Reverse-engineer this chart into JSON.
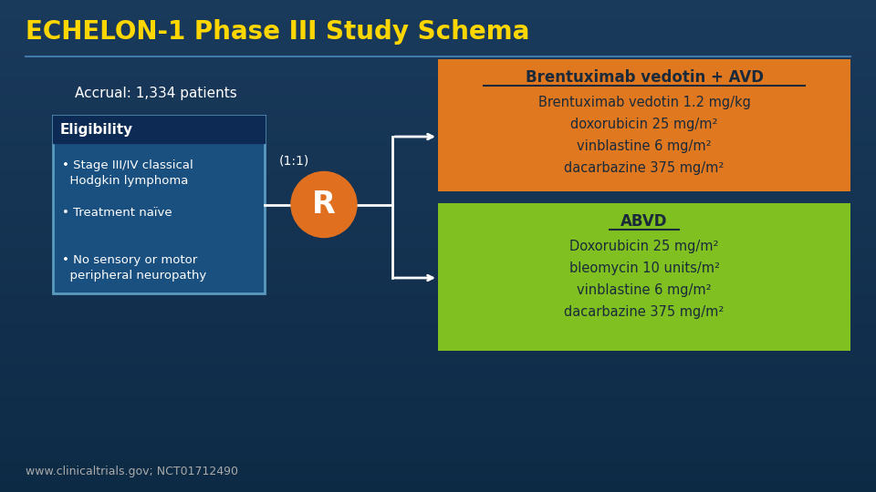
{
  "title": "ECHELON-1 Phase III Study Schema",
  "title_color": "#FFD700",
  "title_fontsize": 20,
  "bg_top": "#1a3a5c",
  "bg_bottom": "#0d2a45",
  "accrual_text": "Accrual: 1,334 patients",
  "accrual_color": "#ffffff",
  "eligibility_header": "Eligibility",
  "eligibility_header_bg": "#0d2a55",
  "eligibility_header_color": "#ffffff",
  "eligibility_box_bg": "#1a5080",
  "eligibility_box_border": "#5a9abf",
  "eligibility_bullets": [
    "• Stage III/IV classical\n  Hodgkin lymphoma",
    "• Treatment naïve",
    "• No sensory or motor\n  peripheral neuropathy"
  ],
  "eligibility_text_color": "#ffffff",
  "randomize_circle_color": "#e07020",
  "randomize_text": "R",
  "randomize_text_color": "#ffffff",
  "ratio_text": "(1:1)",
  "ratio_text_color": "#ffffff",
  "arm1_bg": "#e07820",
  "arm1_title": "Brentuximab vedotin + AVD",
  "arm1_title_color": "#1a2a3a",
  "arm1_lines": [
    "Brentuximab vedotin 1.2 mg/kg",
    "doxorubicin 25 mg/m²",
    "vinblastine 6 mg/m²",
    "dacarbazine 375 mg/m²"
  ],
  "arm1_text_color": "#1a2a3a",
  "arm2_bg": "#80c020",
  "arm2_title": "ABVD",
  "arm2_title_color": "#1a2a3a",
  "arm2_lines": [
    "Doxorubicin 25 mg/m²",
    "bleomycin 10 units/m²",
    "vinblastine 6 mg/m²",
    "dacarbazine 375 mg/m²"
  ],
  "arm2_text_color": "#1a2a3a",
  "footer_text": "www.clinicaltrials.gov; NCT01712490",
  "footer_color": "#aaaaaa",
  "separator_color": "#4a8abf",
  "arrow_color": "#ffffff"
}
